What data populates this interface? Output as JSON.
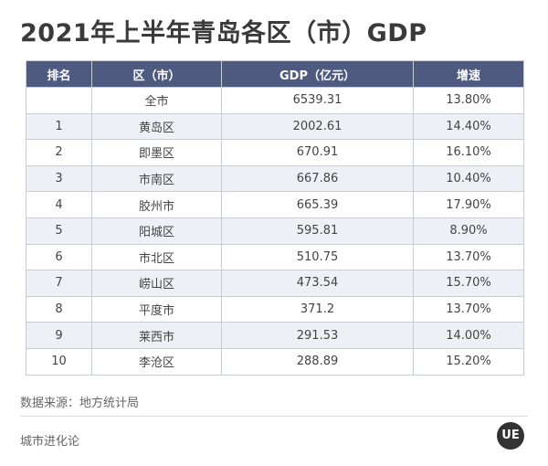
{
  "title": "2021年上半年青岛各区（市）GDP",
  "table": {
    "headers": [
      "排名",
      "区（市）",
      "GDP（亿元）",
      "增速"
    ],
    "rows": [
      {
        "rank": "",
        "district": "全市",
        "gdp": "6539.31",
        "growth": "13.80%"
      },
      {
        "rank": "1",
        "district": "黄岛区",
        "gdp": "2002.61",
        "growth": "14.40%"
      },
      {
        "rank": "2",
        "district": "即墨区",
        "gdp": "670.91",
        "growth": "16.10%"
      },
      {
        "rank": "3",
        "district": "市南区",
        "gdp": "667.86",
        "growth": "10.40%"
      },
      {
        "rank": "4",
        "district": "胶州市",
        "gdp": "665.39",
        "growth": "17.90%"
      },
      {
        "rank": "5",
        "district": "阳城区",
        "gdp": "595.81",
        "growth": "8.90%"
      },
      {
        "rank": "6",
        "district": "市北区",
        "gdp": "510.75",
        "growth": "13.70%"
      },
      {
        "rank": "7",
        "district": "崂山区",
        "gdp": "473.54",
        "growth": "15.70%"
      },
      {
        "rank": "8",
        "district": "平度市",
        "gdp": "371.2",
        "growth": "13.70%"
      },
      {
        "rank": "9",
        "district": "莱西市",
        "gdp": "291.53",
        "growth": "14.00%"
      },
      {
        "rank": "10",
        "district": "李沧区",
        "gdp": "288.89",
        "growth": "15.20%"
      }
    ]
  },
  "source": "数据来源：地方统计局",
  "footer": "城市进化论",
  "logo": {
    "text": "UE",
    "color": "#333333"
  },
  "colors": {
    "header_bg": "#4e5a80",
    "stripe_bg": "#eef0f5",
    "border": "#c9ccd4"
  }
}
